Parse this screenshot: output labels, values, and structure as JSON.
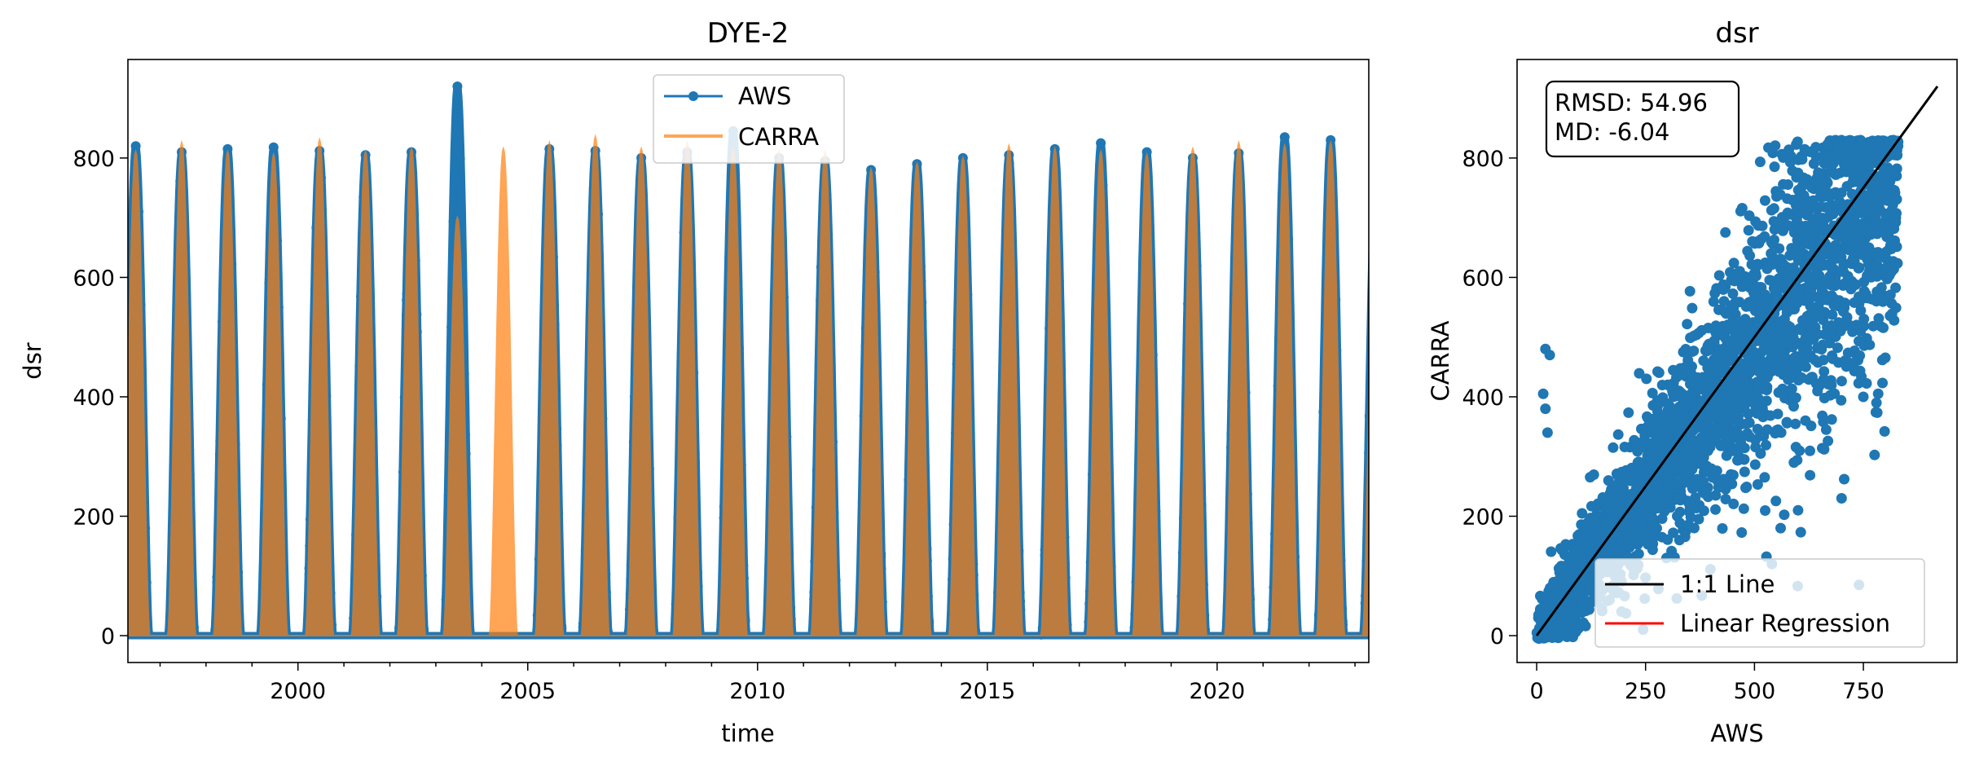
{
  "chart_data": [
    {
      "type": "line",
      "title": "DYE-2",
      "xlabel": "time",
      "ylabel": "dsr",
      "xlim": [
        1996.3,
        2023.3
      ],
      "ylim": [
        -45,
        965
      ],
      "x_ticks": [
        2000,
        2005,
        2010,
        2015,
        2020
      ],
      "x_tick_labels": [
        "2000",
        "2005",
        "2010",
        "2015",
        "2020"
      ],
      "y_ticks": [
        0,
        200,
        400,
        600,
        800
      ],
      "y_tick_labels": [
        "0",
        "200",
        "400",
        "600",
        "800"
      ],
      "grid": false,
      "legend": "top-center",
      "series": [
        {
          "name": "AWS",
          "color": "#1f77b4",
          "marker": "circle",
          "seasonal_peaks": [
            {
              "year": 1996,
              "peak": 820
            },
            {
              "year": 1997,
              "peak": 810
            },
            {
              "year": 1998,
              "peak": 815
            },
            {
              "year": 1999,
              "peak": 818
            },
            {
              "year": 2000,
              "peak": 812
            },
            {
              "year": 2001,
              "peak": 805
            },
            {
              "year": 2002,
              "peak": 810
            },
            {
              "year": 2003,
              "peak": 920
            },
            {
              "year": 2005,
              "peak": 815
            },
            {
              "year": 2006,
              "peak": 812
            },
            {
              "year": 2007,
              "peak": 800
            },
            {
              "year": 2008,
              "peak": 810
            },
            {
              "year": 2009,
              "peak": 845
            },
            {
              "year": 2010,
              "peak": 800
            },
            {
              "year": 2011,
              "peak": 795
            },
            {
              "year": 2012,
              "peak": 780
            },
            {
              "year": 2013,
              "peak": 790
            },
            {
              "year": 2014,
              "peak": 800
            },
            {
              "year": 2015,
              "peak": 805
            },
            {
              "year": 2016,
              "peak": 815
            },
            {
              "year": 2017,
              "peak": 825
            },
            {
              "year": 2018,
              "peak": 810
            },
            {
              "year": 2019,
              "peak": 800
            },
            {
              "year": 2020,
              "peak": 808
            },
            {
              "year": 2021,
              "peak": 835
            },
            {
              "year": 2022,
              "peak": 830
            },
            {
              "year": 2023,
              "peak": 810
            }
          ]
        },
        {
          "name": "CARRA",
          "color": "#ff7f0e",
          "seasonal_peaks": [
            {
              "year": 1996,
              "peak": 810
            },
            {
              "year": 1997,
              "peak": 825
            },
            {
              "year": 1998,
              "peak": 810
            },
            {
              "year": 1999,
              "peak": 805
            },
            {
              "year": 2000,
              "peak": 830
            },
            {
              "year": 2001,
              "peak": 810
            },
            {
              "year": 2002,
              "peak": 815
            },
            {
              "year": 2003,
              "peak": 700
            },
            {
              "year": 2004,
              "peak": 815
            },
            {
              "year": 2005,
              "peak": 825
            },
            {
              "year": 2006,
              "peak": 835
            },
            {
              "year": 2007,
              "peak": 815
            },
            {
              "year": 2008,
              "peak": 825
            },
            {
              "year": 2009,
              "peak": 815
            },
            {
              "year": 2010,
              "peak": 810
            },
            {
              "year": 2011,
              "peak": 810
            },
            {
              "year": 2012,
              "peak": 780
            },
            {
              "year": 2013,
              "peak": 790
            },
            {
              "year": 2014,
              "peak": 800
            },
            {
              "year": 2015,
              "peak": 820
            },
            {
              "year": 2016,
              "peak": 815
            },
            {
              "year": 2017,
              "peak": 810
            },
            {
              "year": 2018,
              "peak": 805
            },
            {
              "year": 2019,
              "peak": 815
            },
            {
              "year": 2020,
              "peak": 825
            },
            {
              "year": 2021,
              "peak": 820
            },
            {
              "year": 2022,
              "peak": 825
            },
            {
              "year": 2023,
              "peak": 810
            }
          ]
        }
      ]
    },
    {
      "type": "scatter",
      "title": "dsr",
      "xlabel": "AWS",
      "ylabel": "CARRA",
      "xlim": [
        -45,
        965
      ],
      "ylim": [
        -45,
        965
      ],
      "x_ticks": [
        0,
        250,
        500,
        750
      ],
      "x_tick_labels": [
        "0",
        "250",
        "500",
        "750"
      ],
      "y_ticks": [
        0,
        200,
        400,
        600,
        800
      ],
      "y_tick_labels": [
        "0",
        "200",
        "400",
        "600",
        "800"
      ],
      "grid": false,
      "color": "#1f77b4",
      "stats_box": [
        "RMSD: 54.96",
        "MD: -6.04"
      ],
      "legend": "bottom-right",
      "lines": [
        {
          "name": "1:1 Line",
          "color": "#000000",
          "x": [
            0,
            920
          ],
          "y": [
            0,
            920
          ]
        },
        {
          "name": "Linear Regression",
          "color": "#ff0000"
        }
      ],
      "outliers": [
        {
          "x": 20,
          "y": 480
        },
        {
          "x": 30,
          "y": 470
        },
        {
          "x": 15,
          "y": 405
        },
        {
          "x": 20,
          "y": 380
        },
        {
          "x": 25,
          "y": 340
        },
        {
          "x": 430,
          "y": 560
        },
        {
          "x": 650,
          "y": 620
        },
        {
          "x": 780,
          "y": 560
        },
        {
          "x": 780,
          "y": 390
        },
        {
          "x": 750,
          "y": 400
        },
        {
          "x": 600,
          "y": 210
        },
        {
          "x": 700,
          "y": 230
        },
        {
          "x": 560,
          "y": 180
        },
        {
          "x": 740,
          "y": 85
        },
        {
          "x": 540,
          "y": 120
        }
      ]
    }
  ]
}
